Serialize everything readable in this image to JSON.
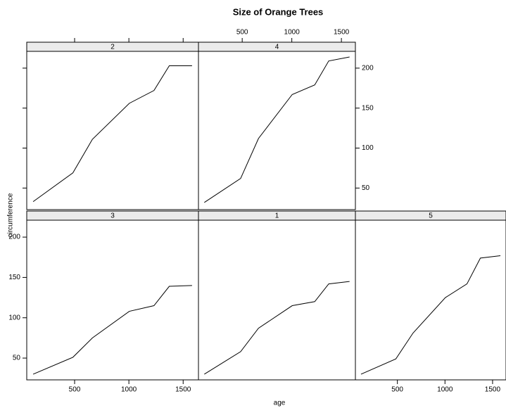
{
  "title": "Size of Orange Trees",
  "x_label": "age",
  "y_label": "circumference",
  "chart_data": [
    {
      "type": "line",
      "title": "2",
      "x": [
        118,
        484,
        664,
        1004,
        1231,
        1372,
        1582
      ],
      "values": [
        33,
        69,
        111,
        156,
        172,
        203,
        203
      ],
      "color": "#000000",
      "xlim": [
        59,
        1641
      ],
      "ylim": [
        23,
        221
      ],
      "xticks": [
        500,
        1000,
        1500
      ],
      "yticks": [
        50,
        100,
        150,
        200
      ]
    },
    {
      "type": "line",
      "title": "4",
      "x": [
        118,
        484,
        664,
        1004,
        1231,
        1372,
        1582
      ],
      "values": [
        32,
        62,
        112,
        167,
        179,
        209,
        214
      ],
      "color": "#000000",
      "xlim": [
        59,
        1641
      ],
      "ylim": [
        23,
        221
      ],
      "xticks": [
        500,
        1000,
        1500
      ],
      "yticks": [
        50,
        100,
        150,
        200
      ]
    },
    {
      "type": "line",
      "title": "3",
      "x": [
        118,
        484,
        664,
        1004,
        1231,
        1372,
        1582
      ],
      "values": [
        30,
        51,
        75,
        108,
        115,
        139,
        140
      ],
      "color": "#000000",
      "xlim": [
        59,
        1641
      ],
      "ylim": [
        23,
        221
      ],
      "xticks": [
        500,
        1000,
        1500
      ],
      "yticks": [
        50,
        100,
        150,
        200
      ]
    },
    {
      "type": "line",
      "title": "1",
      "x": [
        118,
        484,
        664,
        1004,
        1231,
        1372,
        1582
      ],
      "values": [
        30,
        58,
        87,
        115,
        120,
        142,
        145
      ],
      "color": "#000000",
      "xlim": [
        59,
        1641
      ],
      "ylim": [
        23,
        221
      ],
      "xticks": [
        500,
        1000,
        1500
      ],
      "yticks": [
        50,
        100,
        150,
        200
      ]
    },
    {
      "type": "line",
      "title": "5",
      "x": [
        118,
        484,
        664,
        1004,
        1231,
        1372,
        1582
      ],
      "values": [
        30,
        49,
        81,
        125,
        142,
        174,
        177
      ],
      "color": "#000000",
      "xlim": [
        59,
        1641
      ],
      "ylim": [
        23,
        221
      ],
      "xticks": [
        500,
        1000,
        1500
      ],
      "yticks": [
        50,
        100,
        150,
        200
      ]
    }
  ]
}
